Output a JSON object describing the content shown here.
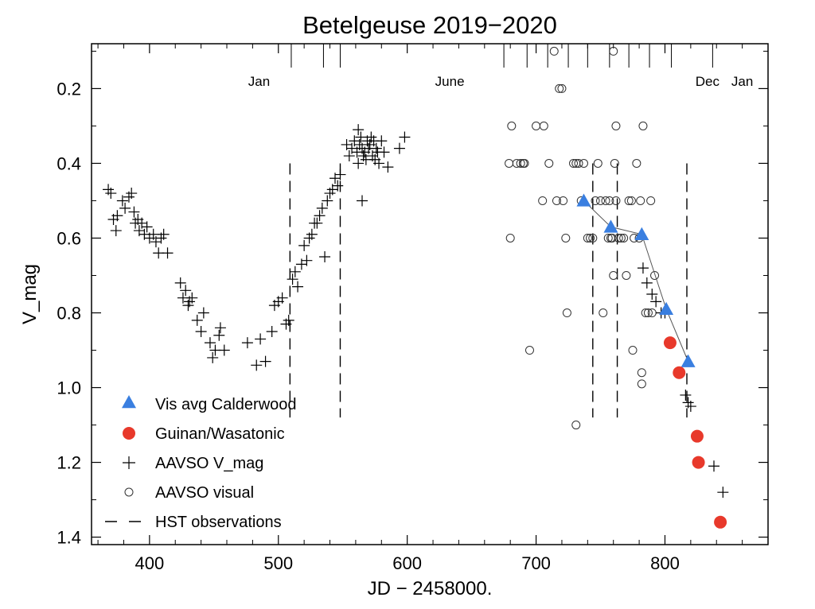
{
  "chart_data": {
    "type": "scatter",
    "title": "Betelgeuse 2019−2020",
    "xlabel": "JD − 2458000.",
    "ylabel": "V_mag",
    "xlim": [
      355,
      880
    ],
    "ylim": [
      1.42,
      0.08
    ],
    "y_inverted": true,
    "grid": false,
    "legend_position": "bottom-left",
    "x_ticks": [
      400,
      500,
      600,
      700,
      800
    ],
    "y_ticks": [
      0.2,
      0.4,
      0.6,
      0.8,
      1.0,
      1.2,
      1.4
    ],
    "x_tick_labels": [
      "400",
      "500",
      "600",
      "700",
      "800"
    ],
    "y_tick_labels": [
      "0.2",
      "0.4",
      "0.6",
      "0.8",
      "1.0",
      "1.2",
      "1.4"
    ],
    "month_labels": [
      {
        "label": "Jan",
        "x": 485
      },
      {
        "label": "June",
        "x": 633
      },
      {
        "label": "Dec",
        "x": 833
      },
      {
        "label": "Jan",
        "x": 860
      }
    ],
    "hst_observations": [
      509,
      548,
      744,
      763,
      817
    ],
    "hst_range": [
      0.4,
      1.08
    ],
    "series": [
      {
        "name": "Vis avg Calderwood",
        "marker": "triangle",
        "color": "#3a7fe0",
        "connected": true,
        "x": [
          737,
          758,
          782,
          801,
          818
        ],
        "y": [
          0.5,
          0.57,
          0.59,
          0.79,
          0.93
        ]
      },
      {
        "name": "Guinan/Wasatonic",
        "marker": "circle-filled",
        "color": "#e8392b",
        "x": [
          804,
          811,
          825,
          826,
          843
        ],
        "y": [
          0.88,
          0.96,
          1.13,
          1.2,
          1.36
        ]
      },
      {
        "name": "AAVSO V_mag",
        "marker": "plus",
        "color": "#000000",
        "x": [
          368,
          370,
          372,
          374,
          375,
          379,
          381,
          384,
          386,
          388,
          389,
          391,
          392,
          394,
          396,
          398,
          400,
          403,
          405,
          407,
          409,
          411,
          414,
          424,
          426,
          428,
          430,
          431,
          433,
          437,
          440,
          442,
          447,
          449,
          451,
          454,
          455,
          458,
          476,
          483,
          486,
          490,
          495,
          497,
          500,
          503,
          506,
          508,
          511,
          513,
          515,
          518,
          520,
          522,
          524,
          526,
          528,
          530,
          532,
          534,
          536,
          538,
          540,
          542,
          544,
          546,
          548,
          553,
          555,
          557,
          559,
          561,
          562,
          563,
          564,
          565,
          566,
          567,
          568,
          569,
          570,
          571,
          572,
          573,
          574,
          575,
          576,
          577,
          578,
          580,
          582,
          585,
          594,
          598,
          565,
          562
        ],
        "y": [
          0.47,
          0.48,
          0.55,
          0.58,
          0.54,
          0.5,
          0.52,
          0.49,
          0.48,
          0.53,
          0.56,
          0.55,
          0.58,
          0.56,
          0.59,
          0.57,
          0.6,
          0.59,
          0.61,
          0.64,
          0.6,
          0.59,
          0.64,
          0.72,
          0.76,
          0.74,
          0.78,
          0.77,
          0.76,
          0.82,
          0.85,
          0.8,
          0.88,
          0.92,
          0.9,
          0.86,
          0.84,
          0.9,
          0.88,
          0.94,
          0.87,
          0.93,
          0.85,
          0.78,
          0.77,
          0.76,
          0.83,
          0.82,
          0.71,
          0.69,
          0.73,
          0.67,
          0.62,
          0.66,
          0.6,
          0.59,
          0.56,
          0.56,
          0.54,
          0.52,
          0.65,
          0.5,
          0.48,
          0.47,
          0.44,
          0.46,
          0.43,
          0.35,
          0.38,
          0.36,
          0.34,
          0.37,
          0.4,
          0.35,
          0.33,
          0.36,
          0.38,
          0.37,
          0.39,
          0.34,
          0.36,
          0.35,
          0.33,
          0.38,
          0.34,
          0.39,
          0.36,
          0.37,
          0.4,
          0.34,
          0.37,
          0.41,
          0.36,
          0.33,
          0.5,
          0.31
        ],
        "x_late": [
          783,
          786,
          790,
          793,
          797,
          800,
          816,
          818,
          820,
          838,
          845
        ],
        "y_late": [
          0.68,
          0.72,
          0.75,
          0.77,
          0.8,
          0.8,
          1.02,
          1.04,
          1.05,
          1.21,
          1.28
        ]
      },
      {
        "name": "AAVSO visual",
        "marker": "circle-open",
        "color": "#000000",
        "x": [
          679,
          681,
          685,
          688,
          691,
          695,
          700,
          705,
          706,
          710,
          714,
          716,
          718,
          720,
          721,
          724,
          729,
          731,
          733,
          735,
          737,
          740,
          742,
          744,
          746,
          748,
          750,
          754,
          757,
          758,
          759,
          760,
          761,
          762,
          764,
          766,
          768,
          770,
          772,
          774,
          776,
          778,
          780,
          781,
          783,
          785,
          787,
          789,
          790,
          792,
          680,
          690,
          723,
          731,
          752,
          756,
          760,
          782,
          782,
          762,
          775
        ],
        "y": [
          0.4,
          0.3,
          0.4,
          0.4,
          0.4,
          0.9,
          0.3,
          0.5,
          0.3,
          0.4,
          0.1,
          0.5,
          0.2,
          0.2,
          0.5,
          0.8,
          0.4,
          0.4,
          0.4,
          0.5,
          0.4,
          0.6,
          0.6,
          0.6,
          0.5,
          0.4,
          0.5,
          0.5,
          0.5,
          0.6,
          0.6,
          0.7,
          0.4,
          0.5,
          0.6,
          0.6,
          0.6,
          0.7,
          0.5,
          0.5,
          0.6,
          0.4,
          0.6,
          0.5,
          0.3,
          0.8,
          0.8,
          0.5,
          0.8,
          0.7,
          0.6,
          0.4,
          0.6,
          1.1,
          0.8,
          0.6,
          0.1,
          0.96,
          0.99,
          0.3,
          0.9
        ]
      }
    ],
    "legend": [
      {
        "label": "Vis avg Calderwood",
        "marker": "triangle"
      },
      {
        "label": "Guinan/Wasatonic",
        "marker": "circle-filled"
      },
      {
        "label": "AAVSO V_mag",
        "marker": "plus"
      },
      {
        "label": "AAVSO visual",
        "marker": "circle-open"
      },
      {
        "label": "HST observations",
        "marker": "dash"
      }
    ]
  }
}
